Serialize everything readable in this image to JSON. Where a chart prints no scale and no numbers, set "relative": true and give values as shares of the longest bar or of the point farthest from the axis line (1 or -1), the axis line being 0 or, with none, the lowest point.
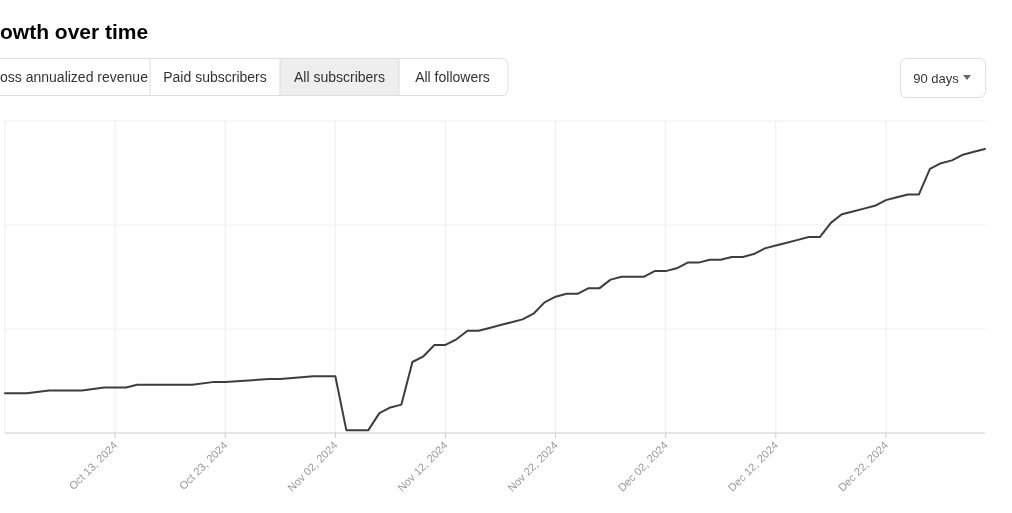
{
  "chart_data": {
    "type": "line",
    "title": "owth over time",
    "annotations": [
      "oss annualized revenue",
      "Paid subscribers",
      "All subscribers",
      "All followers",
      "90 days"
    ],
    "relative": true,
    "x": [
      "2024-10-03",
      "2024-10-05",
      "2024-10-07",
      "2024-10-10",
      "2024-10-12",
      "2024-10-14",
      "2024-10-15",
      "2024-10-17",
      "2024-10-20",
      "2024-10-22",
      "2024-10-23",
      "2024-10-27",
      "2024-10-28",
      "2024-10-31",
      "2024-11-02",
      "2024-11-03",
      "2024-11-04",
      "2024-11-05",
      "2024-11-06",
      "2024-11-07",
      "2024-11-08",
      "2024-11-09",
      "2024-11-10",
      "2024-11-11",
      "2024-11-12",
      "2024-11-13",
      "2024-11-14",
      "2024-11-15",
      "2024-11-16",
      "2024-11-17",
      "2024-11-18",
      "2024-11-19",
      "2024-11-20",
      "2024-11-21",
      "2024-11-22",
      "2024-11-23",
      "2024-11-24",
      "2024-11-25",
      "2024-11-26",
      "2024-11-27",
      "2024-11-28",
      "2024-11-29",
      "2024-11-30",
      "2024-12-01",
      "2024-12-02",
      "2024-12-03",
      "2024-12-04",
      "2024-12-05",
      "2024-12-06",
      "2024-12-07",
      "2024-12-08",
      "2024-12-09",
      "2024-12-10",
      "2024-12-11",
      "2024-12-12",
      "2024-12-13",
      "2024-12-14",
      "2024-12-15",
      "2024-12-16",
      "2024-12-17",
      "2024-12-18",
      "2024-12-19",
      "2024-12-20",
      "2024-12-21",
      "2024-12-22",
      "2024-12-23",
      "2024-12-24",
      "2024-12-25",
      "2024-12-26",
      "2024-12-27",
      "2024-12-28",
      "2024-12-29",
      "2024-12-30",
      "2024-12-31"
    ],
    "series": [
      {
        "color": "#3d3d3d",
        "values": [
          0.14,
          0.14,
          0.15,
          0.15,
          0.16,
          0.16,
          0.17,
          0.17,
          0.17,
          0.18,
          0.18,
          0.19,
          0.19,
          0.2,
          0.2,
          0.01,
          0.01,
          0.01,
          0.07,
          0.09,
          0.1,
          0.25,
          0.27,
          0.31,
          0.31,
          0.33,
          0.36,
          0.36,
          0.37,
          0.38,
          0.39,
          0.4,
          0.42,
          0.46,
          0.48,
          0.49,
          0.49,
          0.51,
          0.51,
          0.54,
          0.55,
          0.55,
          0.55,
          0.57,
          0.57,
          0.58,
          0.6,
          0.6,
          0.61,
          0.61,
          0.62,
          0.62,
          0.63,
          0.65,
          0.66,
          0.67,
          0.68,
          0.69,
          0.69,
          0.74,
          0.77,
          0.78,
          0.79,
          0.8,
          0.82,
          0.83,
          0.84,
          0.84,
          0.93,
          0.95,
          0.96,
          0.98,
          0.99,
          1
        ]
      }
    ],
    "xlim": [
      "2024-10-03",
      "2024-12-31"
    ],
    "xticks": [
      {
        "value": "2024-10-13",
        "label": "Oct 13, 2024"
      },
      {
        "value": "2024-10-23",
        "label": "Oct 23, 2024"
      },
      {
        "value": "2024-11-02",
        "label": "Nov 02, 2024"
      },
      {
        "value": "2024-11-12",
        "label": "Nov 12, 2024"
      },
      {
        "value": "2024-11-22",
        "label": "Nov 22, 2024"
      },
      {
        "value": "2024-12-02",
        "label": "Dec 02, 2024"
      },
      {
        "value": "2024-12-12",
        "label": "Dec 12, 2024"
      },
      {
        "value": "2024-12-22",
        "label": "Dec 22, 2024"
      }
    ],
    "grid": true,
    "line_style": "solid",
    "marker": "none"
  }
}
